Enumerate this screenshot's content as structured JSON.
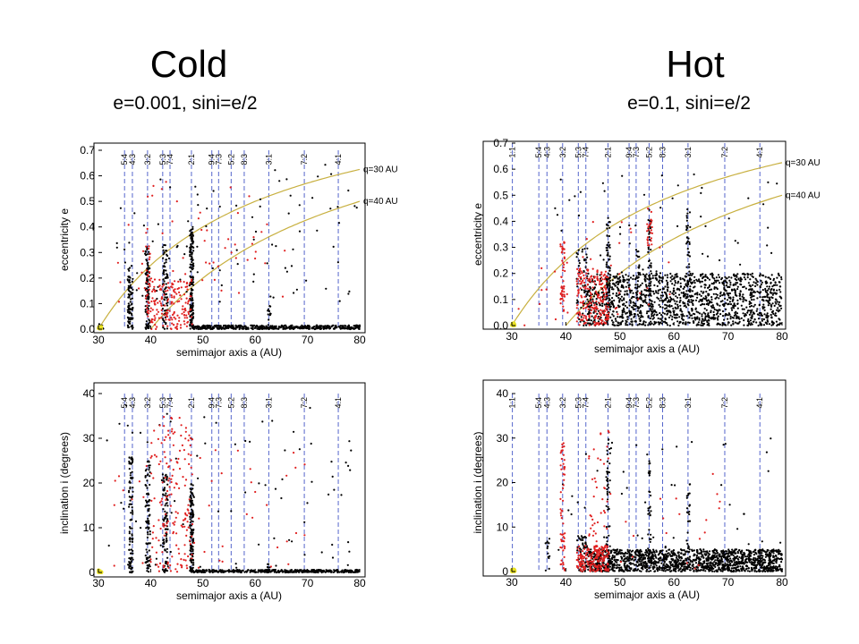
{
  "header": {
    "cold_title": "Cold",
    "cold_subtitle": "e=0.001, sini=e/2",
    "hot_title": "Hot",
    "hot_subtitle": "e=0.1, sini=e/2"
  },
  "colors": {
    "frame": "#000000",
    "resonance_line": "#5566cc",
    "q_curve": "#c8b040",
    "black_particles": "#000000",
    "red_particles": "#e02020",
    "yellow_particles": "#e8e020"
  },
  "resonances": [
    {
      "label": "1:1",
      "a": 30.1
    },
    {
      "label": "5:4",
      "a": 35.0
    },
    {
      "label": "4:3",
      "a": 36.5
    },
    {
      "label": "3:2",
      "a": 39.4
    },
    {
      "label": "5:3",
      "a": 42.3
    },
    {
      "label": "7:4",
      "a": 43.7
    },
    {
      "label": "2:1",
      "a": 47.8
    },
    {
      "label": "9:4",
      "a": 51.7
    },
    {
      "label": "7:3",
      "a": 53.0
    },
    {
      "label": "5:2",
      "a": 55.4
    },
    {
      "label": "8:3",
      "a": 57.9
    },
    {
      "label": "3:1",
      "a": 62.6
    },
    {
      "label": "7:2",
      "a": 69.4
    },
    {
      "label": "4:1",
      "a": 75.9
    }
  ],
  "chart_data": [
    {
      "id": "cold-ecc",
      "type": "scatter",
      "xlabel": "semimajor axis a    (AU)",
      "ylabel": "eccentricity e",
      "xlim": [
        30,
        80
      ],
      "ylim": [
        0,
        0.7
      ],
      "xticks": [
        30,
        40,
        50,
        60,
        70,
        80
      ],
      "yticks": [
        0.0,
        0.1,
        0.2,
        0.3,
        0.4,
        0.5,
        0.6,
        0.7
      ],
      "ytick_labels": [
        "0.0",
        "0.1",
        "0.2",
        "0.3",
        "0.4",
        "0.5",
        "0.6",
        "0.7"
      ],
      "resonance_labels": [
        "5:4",
        "4:3",
        "3:2",
        "5:3",
        "7:4",
        "2:1",
        "9:4",
        "7:3",
        "5:2",
        "8:3",
        "3:1",
        "7:2",
        "4:1"
      ],
      "curves": [
        {
          "label": "q=30 AU",
          "q": 30
        },
        {
          "label": "q=40 AU",
          "q": 40
        }
      ],
      "series": [
        {
          "color": "black",
          "clusters": [
            {
              "a": [
                48,
                80
              ],
              "y": [
                0.0,
                0.015
              ],
              "n": 500
            },
            {
              "a": [
                35.6,
                36.6
              ],
              "y": [
                0.0,
                0.25
              ],
              "n": 90
            },
            {
              "a": [
                39.0,
                39.8
              ],
              "y": [
                0.0,
                0.33
              ],
              "n": 90
            },
            {
              "a": [
                42.3,
                43.3
              ],
              "y": [
                0.0,
                0.33
              ],
              "n": 80
            },
            {
              "a": [
                47.5,
                48.2
              ],
              "y": [
                0.0,
                0.4
              ],
              "n": 170
            },
            {
              "a": [
                30,
                31
              ],
              "y": [
                0.0,
                0.02
              ],
              "n": 10
            },
            {
              "a": [
                62.3,
                63.0
              ],
              "y": [
                0.0,
                0.1
              ],
              "n": 15
            },
            {
              "a": [
                31,
                80
              ],
              "y": [
                0.1,
                0.65
              ],
              "n": 90
            }
          ]
        },
        {
          "color": "red",
          "clusters": [
            {
              "a": [
                40,
                48
              ],
              "y": [
                0.0,
                0.2
              ],
              "n": 160
            },
            {
              "a": [
                39,
                40
              ],
              "y": [
                0.05,
                0.33
              ],
              "n": 30
            },
            {
              "a": [
                33,
                66
              ],
              "y": [
                0.1,
                0.6
              ],
              "n": 60
            }
          ]
        },
        {
          "color": "yellow",
          "clusters": [
            {
              "a": [
                30,
                30.6
              ],
              "y": [
                0.0,
                0.01
              ],
              "n": 12
            }
          ]
        }
      ]
    },
    {
      "id": "cold-inc",
      "type": "scatter",
      "xlabel": "semimajor axis a    (AU)",
      "ylabel": "inclination i    (degrees)",
      "xlim": [
        30,
        80
      ],
      "ylim": [
        0,
        40
      ],
      "xticks": [
        30,
        40,
        50,
        60,
        70,
        80
      ],
      "yticks": [
        0,
        10,
        20,
        30,
        40
      ],
      "ytick_labels": [
        "0",
        "10",
        "20",
        "30",
        "40"
      ],
      "resonance_labels": [
        "5:4",
        "4:3",
        "3:2",
        "5:3",
        "7:4",
        "2:1",
        "9:4",
        "7:3",
        "5:2",
        "8:3",
        "3:1",
        "7:2",
        "4:1"
      ],
      "curves": [],
      "series": [
        {
          "color": "black",
          "clusters": [
            {
              "a": [
                48,
                80
              ],
              "y": [
                0.0,
                0.6
              ],
              "n": 420
            },
            {
              "a": [
                35.8,
                36.6
              ],
              "y": [
                0.0,
                26
              ],
              "n": 100
            },
            {
              "a": [
                39.0,
                39.9
              ],
              "y": [
                0.0,
                25
              ],
              "n": 100
            },
            {
              "a": [
                42.3,
                43.3
              ],
              "y": [
                0.0,
                22
              ],
              "n": 90
            },
            {
              "a": [
                47.5,
                48.2
              ],
              "y": [
                0.0,
                20
              ],
              "n": 130
            },
            {
              "a": [
                62.3,
                63.0
              ],
              "y": [
                0.0,
                2
              ],
              "n": 12
            },
            {
              "a": [
                31,
                80
              ],
              "y": [
                1,
                38
              ],
              "n": 80
            }
          ]
        },
        {
          "color": "red",
          "clusters": [
            {
              "a": [
                40,
                48
              ],
              "y": [
                0.0,
                35
              ],
              "n": 170
            },
            {
              "a": [
                33,
                70
              ],
              "y": [
                1,
                30
              ],
              "n": 40
            }
          ]
        },
        {
          "color": "yellow",
          "clusters": [
            {
              "a": [
                30,
                30.6
              ],
              "y": [
                0.0,
                0.5
              ],
              "n": 12
            }
          ]
        }
      ]
    },
    {
      "id": "hot-ecc",
      "type": "scatter",
      "xlabel": "semimajor axis a    (AU)",
      "ylabel": "eccentricity e",
      "xlim": [
        30,
        80
      ],
      "ylim": [
        0,
        0.7
      ],
      "xticks": [
        30,
        40,
        50,
        60,
        70,
        80
      ],
      "yticks": [
        0.0,
        0.1,
        0.2,
        0.3,
        0.4,
        0.5,
        0.6,
        0.7
      ],
      "ytick_labels": [
        "0.0",
        "0.1",
        "0.2",
        "0.3",
        "0.4",
        "0.5",
        "0.6",
        "0.7"
      ],
      "resonance_labels": [
        "1:1",
        "5:4",
        "4:3",
        "3:2",
        "5:3",
        "7:4",
        "2:1",
        "9:4",
        "7:3",
        "5:2",
        "8:3",
        "3:1",
        "7:2",
        "4:1"
      ],
      "curves": [
        {
          "label": "q=30 AU",
          "q": 30
        },
        {
          "label": "q=40 AU",
          "q": 40
        }
      ],
      "series": [
        {
          "color": "black",
          "clusters": [
            {
              "a": [
                44,
                80
              ],
              "y": [
                0.0,
                0.2
              ],
              "n": 1500
            },
            {
              "a": [
                42,
                44
              ],
              "y": [
                0.0,
                0.3
              ],
              "n": 60
            },
            {
              "a": [
                47.5,
                48.2
              ],
              "y": [
                0.05,
                0.42
              ],
              "n": 80
            },
            {
              "a": [
                55.2,
                55.8
              ],
              "y": [
                0.1,
                0.45
              ],
              "n": 45
            },
            {
              "a": [
                62.3,
                63.0
              ],
              "y": [
                0.1,
                0.45
              ],
              "n": 40
            },
            {
              "a": [
                53,
                54
              ],
              "y": [
                0.1,
                0.3
              ],
              "n": 20
            },
            {
              "a": [
                38,
                80
              ],
              "y": [
                0.2,
                0.6
              ],
              "n": 50
            }
          ]
        },
        {
          "color": "red",
          "clusters": [
            {
              "a": [
                42,
                48
              ],
              "y": [
                0.0,
                0.22
              ],
              "n": 220
            },
            {
              "a": [
                39.0,
                39.8
              ],
              "y": [
                0.05,
                0.33
              ],
              "n": 50
            },
            {
              "a": [
                55.0,
                56.0
              ],
              "y": [
                0.3,
                0.45
              ],
              "n": 25
            },
            {
              "a": [
                31,
                60
              ],
              "y": [
                0.0,
                0.4
              ],
              "n": 40
            }
          ]
        },
        {
          "color": "yellow",
          "clusters": [
            {
              "a": [
                30,
                30.6
              ],
              "y": [
                0.0,
                0.01
              ],
              "n": 12
            }
          ]
        }
      ]
    },
    {
      "id": "hot-inc",
      "type": "scatter",
      "xlabel": "semimajor axis a    (AU)",
      "ylabel": "inclination i    (degrees)",
      "xlim": [
        30,
        80
      ],
      "ylim": [
        0,
        40
      ],
      "xticks": [
        30,
        40,
        50,
        60,
        70,
        80
      ],
      "yticks": [
        0,
        10,
        20,
        30,
        40
      ],
      "ytick_labels": [
        "0",
        "10",
        "20",
        "30",
        "40"
      ],
      "resonance_labels": [
        "1:1",
        "5:4",
        "4:3",
        "3:2",
        "5:3",
        "7:4",
        "2:1",
        "9:4",
        "7:3",
        "5:2",
        "8:3",
        "3:1",
        "7:2",
        "4:1"
      ],
      "curves": [],
      "series": [
        {
          "color": "black",
          "clusters": [
            {
              "a": [
                44,
                80
              ],
              "y": [
                0.0,
                5
              ],
              "n": 1500
            },
            {
              "a": [
                42,
                44
              ],
              "y": [
                0.0,
                8
              ],
              "n": 60
            },
            {
              "a": [
                47.5,
                48.2
              ],
              "y": [
                0.0,
                30
              ],
              "n": 60
            },
            {
              "a": [
                55.2,
                55.8
              ],
              "y": [
                0.0,
                25
              ],
              "n": 30
            },
            {
              "a": [
                62.3,
                63.0
              ],
              "y": [
                0.0,
                20
              ],
              "n": 25
            },
            {
              "a": [
                36,
                37
              ],
              "y": [
                0.0,
                8
              ],
              "n": 15
            },
            {
              "a": [
                38,
                80
              ],
              "y": [
                2,
                30
              ],
              "n": 50
            }
          ]
        },
        {
          "color": "red",
          "clusters": [
            {
              "a": [
                42,
                48
              ],
              "y": [
                0.0,
                6
              ],
              "n": 200
            },
            {
              "a": [
                39.0,
                39.8
              ],
              "y": [
                0.0,
                30
              ],
              "n": 60
            },
            {
              "a": [
                44,
                48
              ],
              "y": [
                5,
                32
              ],
              "n": 40
            },
            {
              "a": [
                48,
                70
              ],
              "y": [
                0,
                22
              ],
              "n": 20
            }
          ]
        },
        {
          "color": "yellow",
          "clusters": [
            {
              "a": [
                30,
                30.6
              ],
              "y": [
                0.0,
                0.5
              ],
              "n": 12
            }
          ]
        }
      ]
    }
  ]
}
